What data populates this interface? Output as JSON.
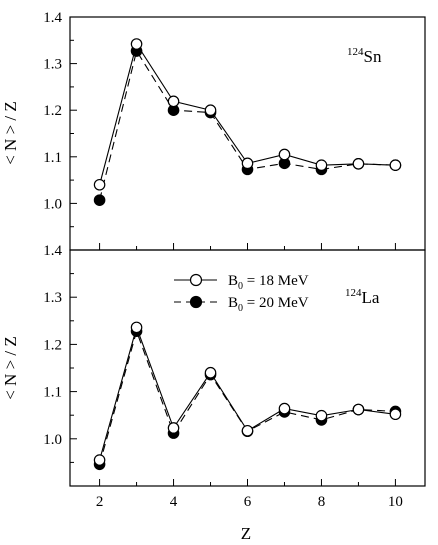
{
  "chart_data": [
    {
      "type": "line",
      "panel_label": {
        "mass": "124",
        "symbol": "Sn"
      },
      "xlabel": "Z",
      "ylabel": "< N > / Z",
      "xlim": [
        1.2,
        10.8
      ],
      "ylim": [
        0.9,
        1.4
      ],
      "yticks": [
        "1.0",
        "1.1",
        "1.2",
        "1.3",
        "1.4"
      ],
      "x": [
        2,
        3,
        4,
        5,
        6,
        7,
        8,
        9,
        10
      ],
      "series": [
        {
          "label": "B0 = 18 MeV",
          "marker": "open-circle",
          "line": "solid",
          "values": [
            1.04,
            1.342,
            1.219,
            1.2,
            1.086,
            1.105,
            1.082,
            1.085,
            1.082
          ]
        },
        {
          "label": "B0 = 20 MeV",
          "marker": "filled-circle",
          "line": "dashed",
          "values": [
            1.007,
            1.327,
            1.2,
            1.195,
            1.073,
            1.086,
            1.073,
            1.085,
            1.082
          ]
        }
      ]
    },
    {
      "type": "line",
      "panel_label": {
        "mass": "124",
        "symbol": "La"
      },
      "xlabel": "Z",
      "ylabel": "< N > / Z",
      "xlim": [
        1.2,
        10.8
      ],
      "ylim": [
        0.9,
        1.4
      ],
      "yticks": [
        "1.0",
        "1.1",
        "1.2",
        "1.3",
        "1.4"
      ],
      "xticks": [
        "2",
        "4",
        "6",
        "8",
        "10"
      ],
      "x": [
        2,
        3,
        4,
        5,
        6,
        7,
        8,
        9,
        10
      ],
      "series": [
        {
          "label": "B0 = 18 MeV",
          "marker": "open-circle",
          "line": "solid",
          "values": [
            0.955,
            1.236,
            1.023,
            1.14,
            1.017,
            1.064,
            1.049,
            1.062,
            1.052
          ]
        },
        {
          "label": "B0 = 20 MeV",
          "marker": "filled-circle",
          "line": "dashed",
          "values": [
            0.946,
            1.228,
            1.012,
            1.136,
            1.016,
            1.057,
            1.04,
            1.062,
            1.058
          ]
        }
      ]
    }
  ],
  "legend": {
    "entries": [
      {
        "prefix": "B",
        "sub": "0",
        "suffix": " = 18 MeV"
      },
      {
        "prefix": "B",
        "sub": "0",
        "suffix": " = 20 MeV"
      }
    ]
  }
}
